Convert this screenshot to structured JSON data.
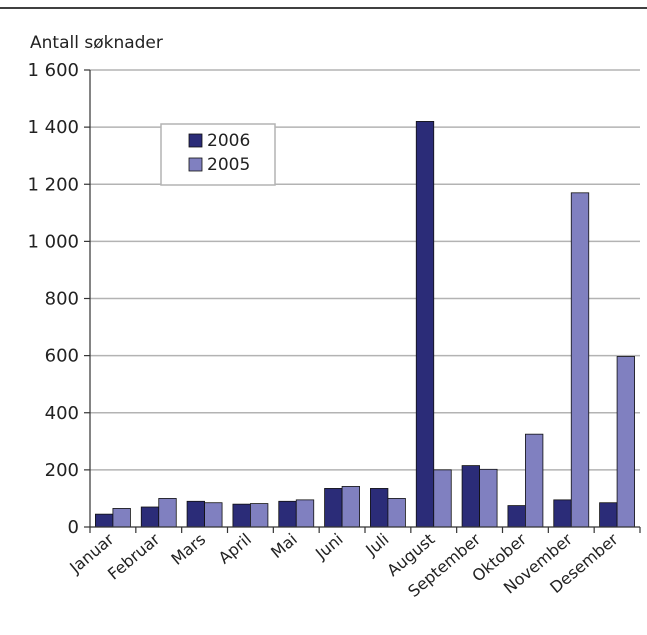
{
  "chart_data": {
    "type": "bar",
    "title": "",
    "ylabel": "Antall søknader",
    "xlabel": "",
    "ylim": [
      0,
      1600
    ],
    "yticks": [
      0,
      200,
      400,
      600,
      800,
      1000,
      1200,
      1400,
      1600
    ],
    "ytick_labels": [
      "0",
      "200",
      "400",
      "600",
      "800",
      "1 000",
      "1 200",
      "1 400",
      "1 600"
    ],
    "grid": "horizontal",
    "legend_position": "top-left",
    "categories": [
      "Januar",
      "Februar",
      "Mars",
      "April",
      "Mai",
      "Juni",
      "Juli",
      "August",
      "September",
      "Oktober",
      "November",
      "Desember"
    ],
    "series": [
      {
        "name": "2006",
        "color": "#2b2c78",
        "values": [
          45,
          70,
          90,
          80,
          90,
          135,
          135,
          1420,
          215,
          75,
          95,
          85
        ]
      },
      {
        "name": "2005",
        "color": "#8080c0",
        "values": [
          65,
          100,
          85,
          82,
          95,
          142,
          100,
          200,
          202,
          325,
          1170,
          597
        ]
      }
    ]
  }
}
